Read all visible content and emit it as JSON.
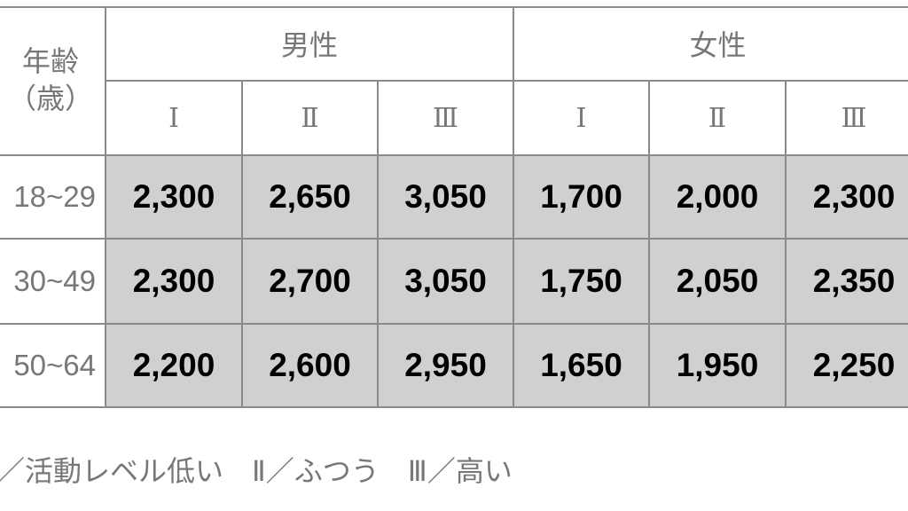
{
  "header": {
    "age_label": "年齢",
    "age_unit": "（歳）",
    "groups": [
      "男性",
      "女性"
    ],
    "levels": [
      "Ⅰ",
      "Ⅱ",
      "Ⅲ",
      "Ⅰ",
      "Ⅱ",
      "Ⅲ"
    ]
  },
  "rows": [
    {
      "age": "18~29",
      "values": [
        "2,300",
        "2,650",
        "3,050",
        "1,700",
        "2,000",
        "2,300"
      ]
    },
    {
      "age": "30~49",
      "values": [
        "2,300",
        "2,700",
        "3,050",
        "1,750",
        "2,050",
        "2,350"
      ]
    },
    {
      "age": "50~64",
      "values": [
        "2,200",
        "2,600",
        "2,950",
        "1,650",
        "1,950",
        "2,250"
      ]
    }
  ],
  "legend": "／活動レベル低い　Ⅱ／ふつう　Ⅲ／高い",
  "colors": {
    "cell_fill": "#d0d0d0",
    "border": "#8a8a8a",
    "label_text": "#777777"
  }
}
